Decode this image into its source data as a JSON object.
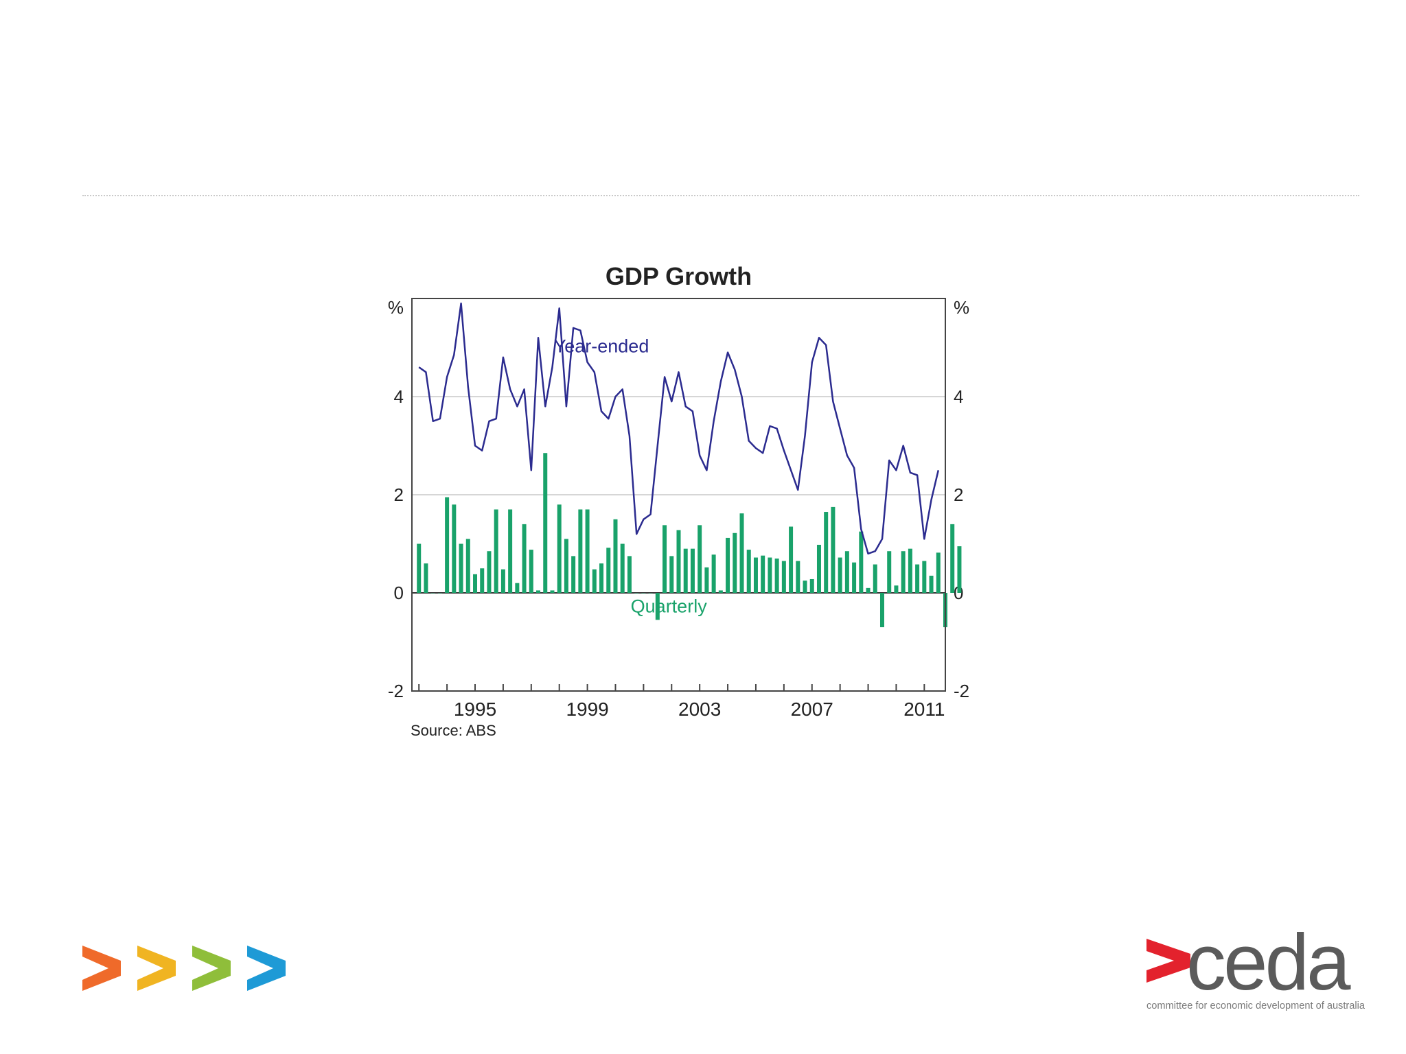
{
  "colors": {
    "yearEnded": "#2b2b8f",
    "quarterly": "#19a26a",
    "grid": "#d6d6d6",
    "axis": "#555555",
    "text": "#222222",
    "chevrons": [
      "#ef6a2a",
      "#f0b422",
      "#8fbe3a",
      "#1e9ad6"
    ],
    "ceda_red": "#e3222d",
    "ceda_grey": "#5b5b5b"
  },
  "footer": {
    "brand": "ceda",
    "tagline": "committee for economic development of australia",
    "chevron_icons": [
      "chevron-orange-icon",
      "chevron-yellow-icon",
      "chevron-green-icon",
      "chevron-blue-icon"
    ]
  },
  "chart_data": {
    "type": "bar",
    "title": "GDP Growth",
    "source": "Source: ABS",
    "ylabel_left": "%",
    "ylabel_right": "%",
    "ylim": [
      -2,
      6
    ],
    "yticks": [
      -2,
      0,
      2,
      4
    ],
    "xlim": [
      1992.75,
      2011.75
    ],
    "xticks": [
      1995,
      1999,
      2003,
      2007,
      2011
    ],
    "grid": true,
    "annotations": [
      {
        "text": "Year-ended",
        "series": "Year-ended",
        "x": 1999.5,
        "y": 4.9
      },
      {
        "text": "Quarterly",
        "series": "Quarterly",
        "x": 2001.9,
        "y": -0.4
      }
    ],
    "series": [
      {
        "name": "Year-ended",
        "type": "line",
        "start": 1993.0,
        "step": 0.25,
        "values": [
          4.6,
          4.5,
          3.5,
          3.55,
          4.4,
          4.85,
          5.9,
          4.2,
          3.0,
          2.9,
          3.5,
          3.55,
          4.8,
          4.15,
          3.8,
          4.15,
          2.5,
          5.2,
          3.8,
          4.6,
          5.8,
          3.8,
          5.4,
          5.35,
          4.7,
          4.5,
          3.7,
          3.55,
          4.0,
          4.15,
          3.2,
          1.2,
          1.5,
          1.6,
          3.0,
          4.4,
          3.9,
          4.5,
          3.8,
          3.7,
          2.8,
          2.5,
          3.5,
          4.3,
          4.9,
          4.55,
          4.0,
          3.1,
          2.95,
          2.85,
          3.4,
          3.35,
          2.9,
          2.5,
          2.1,
          3.2,
          4.7,
          5.2,
          5.05,
          3.9,
          3.35,
          2.8,
          2.55,
          1.3,
          0.8,
          0.85,
          1.1,
          2.7,
          2.5,
          3.0,
          2.45,
          2.4,
          1.1,
          1.9,
          2.5
        ]
      },
      {
        "name": "Quarterly",
        "type": "bar",
        "start": 1993.0,
        "step": 0.25,
        "values": [
          1.0,
          0.6,
          0.0,
          0.0,
          1.95,
          1.8,
          1.0,
          1.1,
          0.38,
          0.5,
          0.85,
          1.7,
          0.48,
          1.7,
          0.2,
          1.4,
          0.88,
          0.05,
          2.85,
          0.05,
          1.8,
          1.1,
          0.75,
          1.7,
          1.7,
          0.48,
          0.6,
          0.92,
          1.5,
          1.0,
          0.75,
          0.0,
          0.0,
          0.0,
          -0.55,
          1.38,
          0.75,
          1.28,
          0.9,
          0.9,
          1.38,
          0.52,
          0.78,
          0.05,
          1.12,
          1.22,
          1.62,
          0.88,
          0.72,
          0.76,
          0.72,
          0.7,
          0.65,
          1.35,
          0.65,
          0.25,
          0.28,
          0.98,
          1.65,
          1.75,
          0.72,
          0.85,
          0.62,
          1.25,
          0.1,
          0.58,
          -0.7,
          0.85,
          0.15,
          0.85,
          0.9,
          0.58,
          0.65,
          0.35,
          0.82,
          -0.7,
          1.4,
          0.95
        ]
      }
    ]
  }
}
